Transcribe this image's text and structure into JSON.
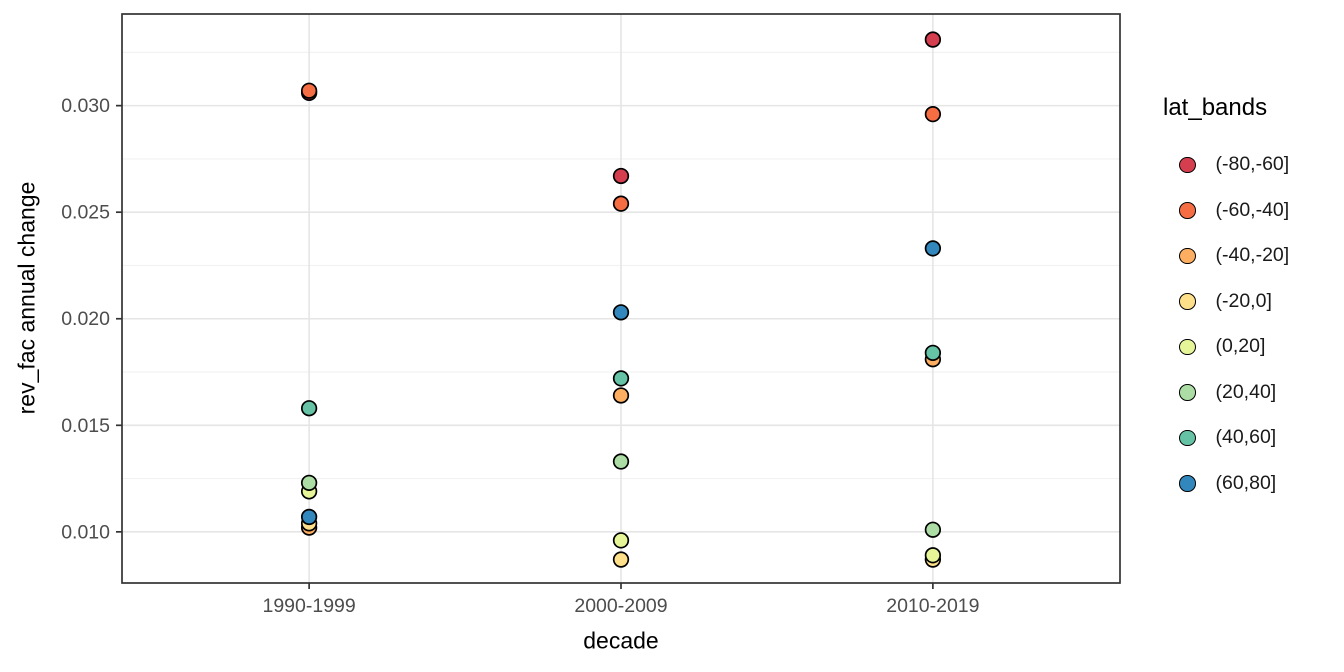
{
  "chart_data": {
    "type": "scatter",
    "title": "",
    "xlabel": "decade",
    "ylabel": "rev_fac annual change",
    "categories": [
      "1990-1999",
      "2000-2009",
      "2010-2019"
    ],
    "series": [
      {
        "name": "(-80,-60]",
        "color": "#d53e4f",
        "values": [
          0.0306,
          0.0267,
          0.0331
        ]
      },
      {
        "name": "(-60,-40]",
        "color": "#f46d43",
        "values": [
          0.0307,
          0.0254,
          0.0296
        ]
      },
      {
        "name": "(-40,-20]",
        "color": "#fdae61",
        "values": [
          0.0102,
          0.0164,
          0.0181
        ]
      },
      {
        "name": "(-20,0]",
        "color": "#fee08b",
        "values": [
          0.0104,
          0.0087,
          0.0087
        ]
      },
      {
        "name": "(0,20]",
        "color": "#e6f598",
        "values": [
          0.0119,
          0.0096,
          0.0089
        ]
      },
      {
        "name": "(20,40]",
        "color": "#abdda4",
        "values": [
          0.0123,
          0.0133,
          0.0101
        ]
      },
      {
        "name": "(40,60]",
        "color": "#66c2a5",
        "values": [
          0.0158,
          0.0172,
          0.0184
        ]
      },
      {
        "name": "(60,80]",
        "color": "#3288bd",
        "values": [
          0.0107,
          0.0203,
          0.0233
        ]
      }
    ],
    "y_ticks": [
      "0.010",
      "0.015",
      "0.020",
      "0.025",
      "0.030"
    ],
    "y_tick_values": [
      0.01,
      0.015,
      0.02,
      0.025,
      0.03
    ],
    "y_minor_values": [
      0.0125,
      0.0175,
      0.0225,
      0.0275,
      0.0325
    ],
    "ylim": [
      0.0076,
      0.0343
    ],
    "grid": true,
    "legend": {
      "title": "lat_bands",
      "position": "right"
    },
    "colors": {
      "background": "#ffffff",
      "panel_border": "#333333",
      "grid_major": "#e5e5e5",
      "grid_minor": "#f2f2f2",
      "axis_text": "#4d4d4d",
      "tick_mark": "#333333",
      "point_stroke": "#000000"
    }
  }
}
